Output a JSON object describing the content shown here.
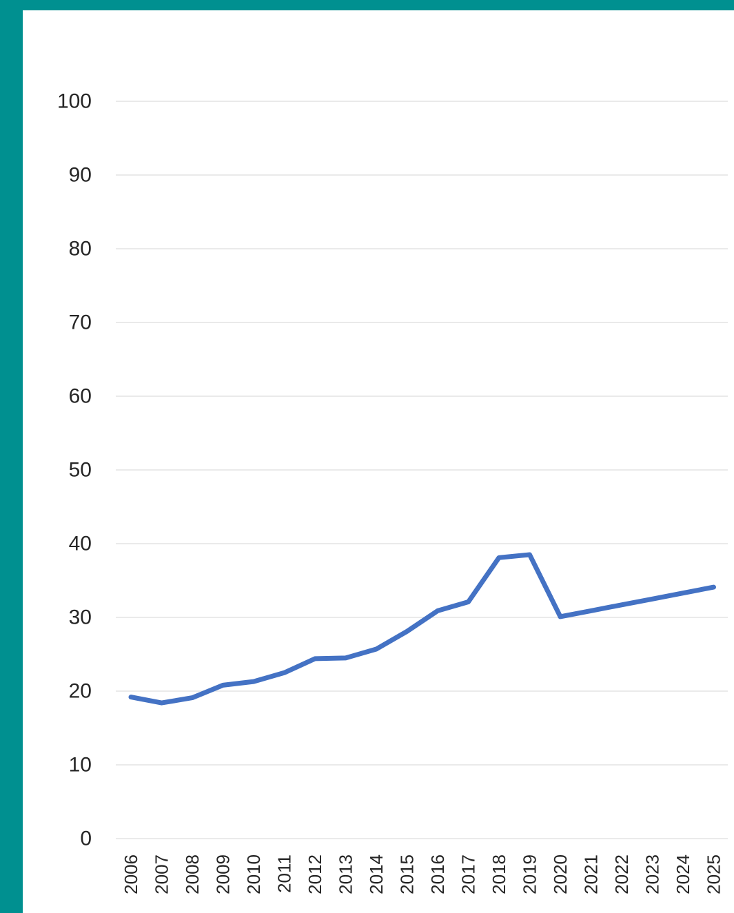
{
  "colors": {
    "frame": "#009090",
    "background": "#ffffff",
    "gridline": "#e3e3e3",
    "series_line": "#4472c4",
    "text": "#262626"
  },
  "chart_data": {
    "type": "line",
    "title": "",
    "xlabel": "",
    "ylabel": "",
    "ylim": [
      0,
      100
    ],
    "yticks": [
      "0",
      "10",
      "20",
      "30",
      "40",
      "50",
      "60",
      "70",
      "80",
      "90",
      "100"
    ],
    "grid": true,
    "legend": "none",
    "categories": [
      "2006",
      "2007",
      "2008",
      "2009",
      "2010",
      "2011",
      "2012",
      "2013",
      "2014",
      "2015",
      "2016",
      "2017",
      "2018",
      "2019",
      "2020",
      "2021",
      "2022",
      "2023",
      "2024",
      "2025"
    ],
    "series": [
      {
        "values": [
          19.2,
          18.4,
          19.1,
          20.8,
          21.3,
          22.5,
          24.4,
          24.5,
          25.7,
          28.1,
          30.9,
          32.1,
          38.1,
          38.5,
          30.1,
          30.9,
          31.7,
          32.5,
          33.3,
          34.1
        ]
      }
    ]
  }
}
